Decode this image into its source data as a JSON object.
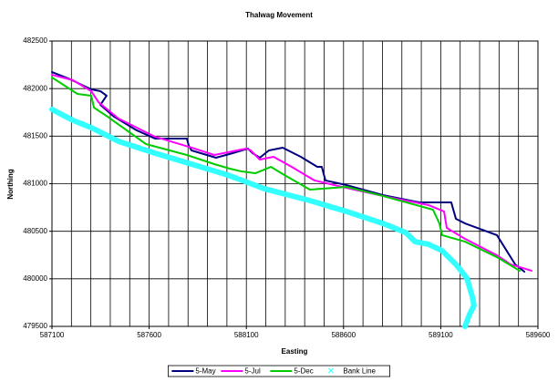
{
  "chart_data": {
    "type": "line",
    "title": "Thalwag Movement",
    "x_label": "Easting",
    "y_label": "Northing",
    "xlim": [
      587100,
      589600
    ],
    "xticks": [
      587100,
      587600,
      588100,
      588600,
      589100,
      589600
    ],
    "x_grid_step": 100,
    "ylim": [
      479500,
      482500
    ],
    "yticks": [
      479500,
      480000,
      480500,
      481000,
      481500,
      482000,
      482500
    ],
    "grid": true,
    "legend": "bottom",
    "series": [
      {
        "name": "5-May",
        "color": "#000080",
        "style": "line",
        "x": [
          587100,
          587184,
          587302,
          587349,
          587381,
          587349,
          587419,
          587536,
          587630,
          587794,
          587804,
          587818,
          587944,
          588029,
          588108,
          588132,
          588169,
          588216,
          588287,
          588380,
          588465,
          588488,
          588507,
          588615,
          588802,
          588990,
          589154,
          589178,
          589225,
          589389,
          589483,
          589530
        ],
        "values": [
          482174,
          482107,
          481992,
          481973,
          481925,
          481829,
          481705,
          481561,
          481475,
          481475,
          481398,
          481350,
          481273,
          481321,
          481369,
          481321,
          481273,
          481350,
          481379,
          481283,
          481177,
          481177,
          481034,
          480986,
          480880,
          480804,
          480804,
          480631,
          480583,
          480459,
          480152,
          480075
        ]
      },
      {
        "name": "5-Jul",
        "color": "#ff00ff",
        "style": "line",
        "x": [
          587100,
          587208,
          587302,
          587339,
          587442,
          587630,
          587818,
          587935,
          588099,
          588122,
          588169,
          588240,
          588333,
          588451,
          588591,
          588802,
          589037,
          589117,
          589131,
          589225,
          589389,
          589459,
          589567
        ],
        "values": [
          482145,
          482088,
          481973,
          481858,
          481685,
          481494,
          481379,
          481302,
          481369,
          481350,
          481254,
          481283,
          481177,
          481034,
          480967,
          480871,
          480775,
          480708,
          480535,
          480420,
          480248,
          480152,
          480085
        ]
      },
      {
        "name": "5-Dec",
        "color": "#00cc00",
        "style": "line",
        "x": [
          587100,
          587231,
          587302,
          587316,
          587386,
          587583,
          587794,
          587935,
          588015,
          588076,
          588146,
          588226,
          588296,
          588427,
          588615,
          588802,
          589060,
          589093,
          589107,
          589225,
          589389,
          589506
        ],
        "values": [
          482117,
          481944,
          481925,
          481800,
          481705,
          481417,
          481302,
          481206,
          481158,
          481129,
          481110,
          481177,
          481091,
          480938,
          480967,
          480871,
          480727,
          480583,
          480459,
          480391,
          480228,
          480085
        ]
      },
      {
        "name": "Bank Line",
        "color": "#33ffff",
        "style": "markers",
        "x": [
          587100,
          587208,
          587302,
          587442,
          587630,
          587818,
          588005,
          588193,
          588427,
          588615,
          588802,
          588920,
          588967,
          589037,
          589107,
          589178,
          589234,
          589262,
          589271,
          589248,
          589225
        ],
        "values": [
          481781,
          481666,
          481590,
          481446,
          481321,
          481206,
          481091,
          480947,
          480823,
          480708,
          480583,
          480487,
          480391,
          480363,
          480296,
          480152,
          480008,
          479816,
          479720,
          479625,
          479500
        ]
      }
    ]
  }
}
